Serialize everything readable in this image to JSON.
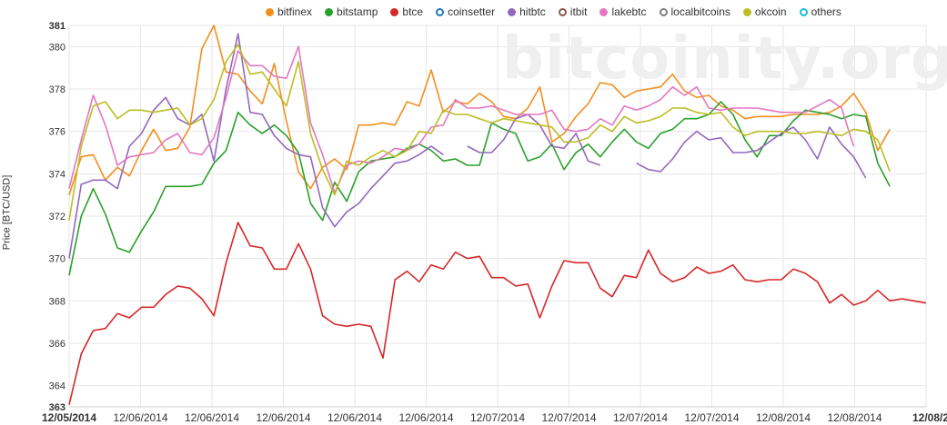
{
  "watermark": "bitcoinity.org",
  "chart_data": {
    "type": "line",
    "ylabel": "Price [BTC/USD]",
    "xlabel": "",
    "ylim": [
      363,
      381
    ],
    "yticks": [
      363,
      364,
      366,
      368,
      370,
      372,
      374,
      376,
      378,
      380,
      381
    ],
    "xticks": [
      {
        "label": "12/05/2014",
        "bold": true
      },
      {
        "label": "12/06/2014",
        "bold": false
      },
      {
        "label": "12/06/2014",
        "bold": false
      },
      {
        "label": "12/06/2014",
        "bold": false
      },
      {
        "label": "12/06/2014",
        "bold": false
      },
      {
        "label": "12/06/2014",
        "bold": false
      },
      {
        "label": "12/07/2014",
        "bold": false
      },
      {
        "label": "12/07/2014",
        "bold": false
      },
      {
        "label": "12/07/2014",
        "bold": false
      },
      {
        "label": "12/07/2014",
        "bold": false
      },
      {
        "label": "12/08/2014",
        "bold": false
      },
      {
        "label": "12/08/2014",
        "bold": false
      },
      {
        "label": "12/08/2",
        "bold": true
      }
    ],
    "grid": true,
    "legend_position": "top",
    "series": [
      {
        "name": "bitfinex",
        "color": "#f28f1e",
        "shape": "filled",
        "values": [
          373.0,
          374.8,
          374.9,
          373.7,
          374.3,
          373.9,
          375.1,
          376.1,
          375.1,
          375.2,
          376.2,
          379.9,
          381.0,
          378.8,
          378.7,
          377.9,
          377.3,
          379.2,
          376.5,
          374.1,
          373.3,
          374.3,
          374.7,
          374.2,
          376.3,
          376.3,
          376.4,
          376.3,
          377.4,
          377.2,
          378.9,
          376.9,
          377.4,
          377.3,
          377.8,
          377.4,
          376.7,
          376.6,
          377.1,
          378.1,
          375.5,
          375.9,
          376.7,
          377.3,
          378.3,
          378.2,
          377.6,
          377.9,
          378.0,
          378.1,
          378.7,
          377.9,
          377.6,
          377.7,
          377.2,
          377.0,
          376.6,
          376.7,
          376.7,
          376.7,
          376.8,
          376.8,
          376.8,
          376.9,
          377.2,
          377.8,
          376.9,
          375.1,
          376.1
        ]
      },
      {
        "name": "bitstamp",
        "color": "#2aa02a",
        "shape": "filled",
        "values": [
          369.2,
          372.0,
          373.3,
          372.1,
          370.5,
          370.3,
          371.3,
          372.2,
          373.4,
          373.4,
          373.4,
          373.5,
          374.5,
          375.1,
          376.9,
          376.3,
          375.9,
          376.3,
          375.8,
          375.0,
          372.6,
          371.8,
          373.6,
          372.7,
          374.1,
          374.6,
          374.7,
          374.8,
          375.2,
          375.4,
          375.1,
          374.6,
          374.7,
          374.4,
          374.4,
          376.4,
          376.1,
          375.9,
          374.6,
          374.8,
          375.4,
          374.2,
          375.0,
          375.4,
          374.8,
          375.5,
          376.1,
          375.5,
          375.2,
          375.9,
          376.1,
          376.6,
          376.6,
          376.8,
          377.4,
          376.8,
          375.6,
          374.8,
          375.8,
          375.8,
          376.5,
          377.0,
          376.9,
          376.8,
          376.6,
          376.8,
          376.7,
          374.5,
          373.4
        ]
      },
      {
        "name": "btce",
        "color": "#d62728",
        "shape": "filled",
        "values": [
          363.1,
          365.5,
          366.6,
          366.7,
          367.4,
          367.2,
          367.7,
          367.7,
          368.3,
          368.7,
          368.6,
          368.1,
          367.3,
          369.8,
          371.7,
          370.6,
          370.5,
          369.5,
          369.5,
          370.7,
          369.5,
          367.3,
          366.9,
          366.8,
          366.9,
          366.8,
          365.3,
          369.0,
          369.4,
          368.9,
          369.7,
          369.5,
          370.3,
          370.0,
          370.1,
          369.1,
          369.1,
          368.7,
          368.8,
          367.2,
          368.7,
          369.9,
          369.8,
          369.8,
          368.6,
          368.2,
          369.2,
          369.1,
          370.4,
          369.3,
          368.9,
          369.1,
          369.6,
          369.3,
          369.4,
          369.7,
          369.0,
          368.9,
          369.0,
          369.0,
          369.5,
          369.3,
          368.9,
          367.9,
          368.3,
          367.8,
          368.0,
          368.5,
          368.0,
          368.1,
          368.0,
          367.9
        ]
      },
      {
        "name": "coinsetter",
        "color": "#1f77b4",
        "shape": "ring",
        "values": []
      },
      {
        "name": "hitbtc",
        "color": "#9467bd",
        "shape": "filled",
        "values": [
          370.0,
          373.5,
          373.7,
          373.7,
          373.3,
          375.3,
          375.9,
          377.0,
          377.6,
          376.6,
          376.3,
          376.8,
          374.6,
          378.0,
          380.6,
          376.9,
          376.8,
          375.8,
          375.2,
          374.9,
          374.8,
          372.4,
          371.5,
          372.2,
          372.6,
          373.3,
          373.9,
          374.5,
          374.6,
          374.9,
          375.3,
          374.9,
          null,
          375.3,
          375.0,
          375.0,
          375.6,
          376.6,
          376.8,
          376.3,
          375.3,
          375.2,
          375.9,
          374.6,
          374.4,
          null,
          null,
          374.5,
          374.2,
          374.1,
          374.7,
          375.5,
          376.0,
          375.6,
          375.7,
          375.0,
          375.0,
          375.1,
          375.5,
          375.9,
          376.2,
          375.6,
          374.7,
          376.2,
          375.4,
          374.8,
          373.8
        ]
      },
      {
        "name": "itbit",
        "color": "#8c564b",
        "shape": "ring",
        "values": []
      },
      {
        "name": "lakebtc",
        "color": "#e377c2",
        "shape": "filled",
        "values": [
          373.3,
          375.6,
          377.7,
          376.3,
          374.4,
          374.8,
          374.9,
          375.0,
          375.6,
          375.9,
          375.0,
          374.9,
          375.7,
          377.6,
          379.8,
          379.1,
          379.1,
          378.6,
          378.5,
          380.0,
          376.4,
          374.9,
          373.1,
          374.4,
          374.6,
          374.5,
          374.8,
          375.2,
          375.1,
          375.4,
          376.2,
          376.3,
          377.5,
          377.1,
          377.1,
          377.2,
          377.0,
          376.8,
          376.8,
          376.8,
          377.0,
          376.1,
          376.0,
          376.1,
          376.6,
          376.3,
          377.2,
          377.0,
          377.2,
          377.5,
          378.1,
          377.7,
          378.1,
          377.1,
          377.0,
          377.1,
          377.1,
          377.1,
          377.0,
          376.9,
          376.9,
          376.9,
          377.2,
          377.5,
          377.1,
          375.3
        ]
      },
      {
        "name": "localbitcoins",
        "color": "#7f7f7f",
        "shape": "ring",
        "values": []
      },
      {
        "name": "okcoin",
        "color": "#bcbd22",
        "shape": "filled",
        "values": [
          371.8,
          375.3,
          377.2,
          377.4,
          376.6,
          377.0,
          377.0,
          376.9,
          377.0,
          377.1,
          376.3,
          376.6,
          377.5,
          379.3,
          380.1,
          378.7,
          378.8,
          378.0,
          377.2,
          379.3,
          375.9,
          374.2,
          373.0,
          374.6,
          374.4,
          374.8,
          375.1,
          374.8,
          375.1,
          376.0,
          375.9,
          377.0,
          376.8,
          376.8,
          376.6,
          376.4,
          376.6,
          376.5,
          376.4,
          376.3,
          376.2,
          375.5,
          375.5,
          375.7,
          376.3,
          376.0,
          376.7,
          376.4,
          376.5,
          376.7,
          377.1,
          377.1,
          376.9,
          376.8,
          376.9,
          376.2,
          375.8,
          376.0,
          376.0,
          376.0,
          375.9,
          375.9,
          376.0,
          375.9,
          375.8,
          376.1,
          376.0,
          375.6,
          374.1
        ]
      },
      {
        "name": "others",
        "color": "#17becf",
        "shape": "ring",
        "values": []
      }
    ]
  }
}
